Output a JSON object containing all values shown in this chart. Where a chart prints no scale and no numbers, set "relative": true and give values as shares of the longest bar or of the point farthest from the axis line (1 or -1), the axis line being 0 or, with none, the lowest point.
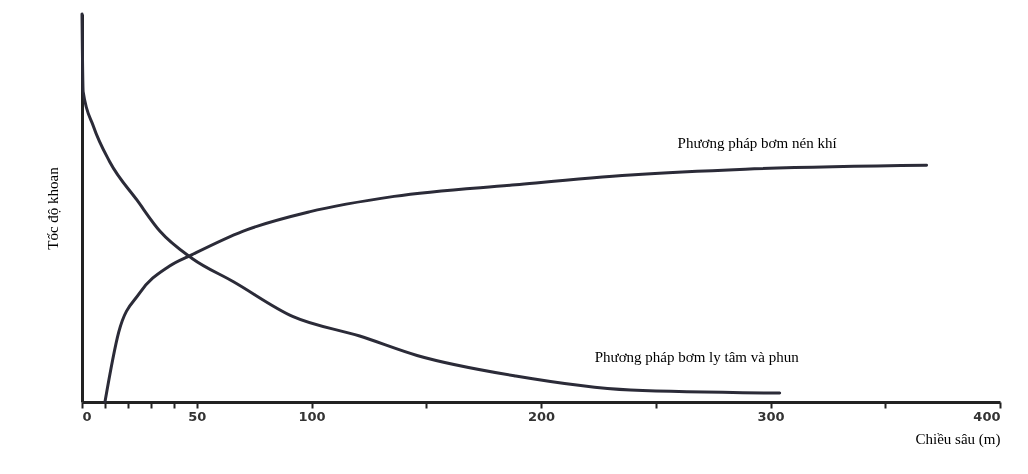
{
  "chart_data": {
    "type": "line",
    "relative": true,
    "xlabel": "Chiều sâu (m)",
    "ylabel": "Tốc độ khoan",
    "xlim": [
      0,
      400
    ],
    "xticks": [
      0,
      {
        "value": 10,
        "label": null
      },
      {
        "value": 20,
        "label": null
      },
      {
        "value": 30,
        "label": null
      },
      {
        "value": 40,
        "label": null
      },
      50,
      100,
      {
        "value": 150,
        "label": null
      },
      200,
      {
        "value": 250,
        "label": null
      },
      300,
      {
        "value": 350,
        "label": null
      },
      400
    ],
    "grid": false,
    "series": [
      {
        "name": "Phương pháp bơm ly tâm và phun",
        "color": "#2b2b38",
        "x": [
          0,
          0.5,
          5,
          12,
          24,
          34,
          48,
          66,
          92,
          121,
          146,
          189,
          239,
          304
        ],
        "values": [
          1.0,
          0.8,
          0.71,
          0.62,
          0.52,
          0.44,
          0.37,
          0.31,
          0.22,
          0.17,
          0.12,
          0.067,
          0.031,
          0.023
        ]
      },
      {
        "name": "Phương pháp bơm nén khí",
        "color": "#2b2b38",
        "x": [
          10,
          16,
          25,
          38,
          48,
          70,
          99,
          136,
          189,
          239,
          289,
          368
        ],
        "values": [
          0,
          0.18,
          0.28,
          0.35,
          0.38,
          0.44,
          0.49,
          0.53,
          0.56,
          0.585,
          0.6,
          0.61
        ]
      }
    ]
  }
}
